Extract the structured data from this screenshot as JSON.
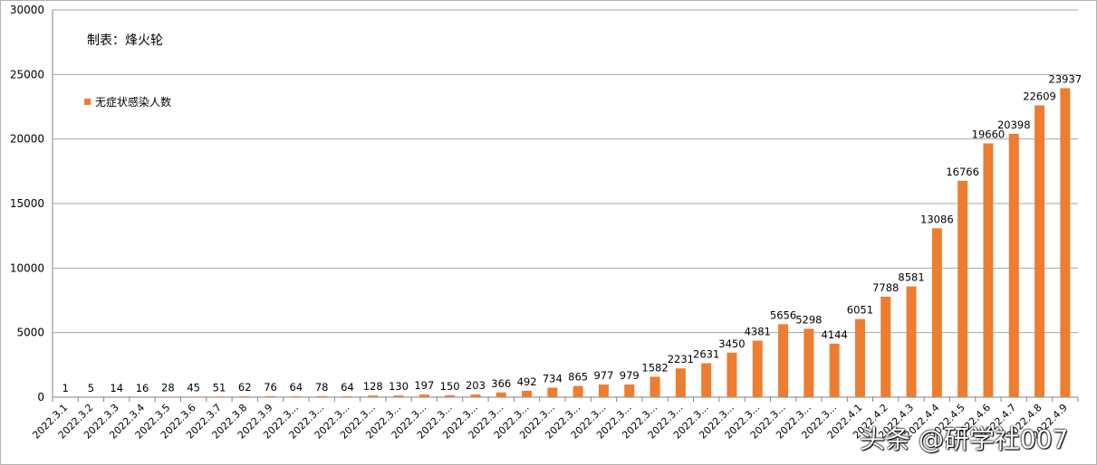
{
  "credit": "制表：烽火轮",
  "watermark": "头条 @研学社007",
  "colors": {
    "bar": "#ed7d31",
    "grid": "#a6a6a6",
    "axis": "#808080"
  },
  "chart_data": {
    "type": "bar",
    "title": "",
    "xlabel": "",
    "ylabel": "",
    "ylim": [
      0,
      30000
    ],
    "yticks": [
      0,
      5000,
      10000,
      15000,
      20000,
      25000,
      30000
    ],
    "grid": true,
    "legend_position": "top-left",
    "categories": [
      "2022.3.1",
      "2022.3.2",
      "2022.3.3",
      "2022.3.4",
      "2022.3.5",
      "2022.3.6",
      "2022.3.7",
      "2022.3.8",
      "2022.3.9",
      "2022.3...",
      "2022.3...",
      "2022.3...",
      "2022.3...",
      "2022.3...",
      "2022.3...",
      "2022.3...",
      "2022.3...",
      "2022.3...",
      "2022.3...",
      "2022.3...",
      "2022.3...",
      "2022.3...",
      "2022.3...",
      "2022.3...",
      "2022.3...",
      "2022.3...",
      "2022.3...",
      "2022.3...",
      "2022.3...",
      "2022.3...",
      "2022.3...",
      "2022.4.1",
      "2022.4.2",
      "2022.4.3",
      "2022.4.4",
      "2022.4.5",
      "2022.4.6",
      "2022.4.7",
      "2022.4.8",
      "2022.4.9"
    ],
    "series": [
      {
        "name": "无症状感染人数",
        "values": [
          1,
          5,
          14,
          16,
          28,
          45,
          51,
          62,
          76,
          64,
          78,
          64,
          128,
          130,
          197,
          150,
          203,
          366,
          492,
          734,
          865,
          977,
          979,
          1582,
          2231,
          2631,
          3450,
          4381,
          5656,
          5298,
          4144,
          6051,
          7788,
          8581,
          13086,
          16766,
          19660,
          20398,
          22609,
          23937
        ]
      }
    ]
  }
}
